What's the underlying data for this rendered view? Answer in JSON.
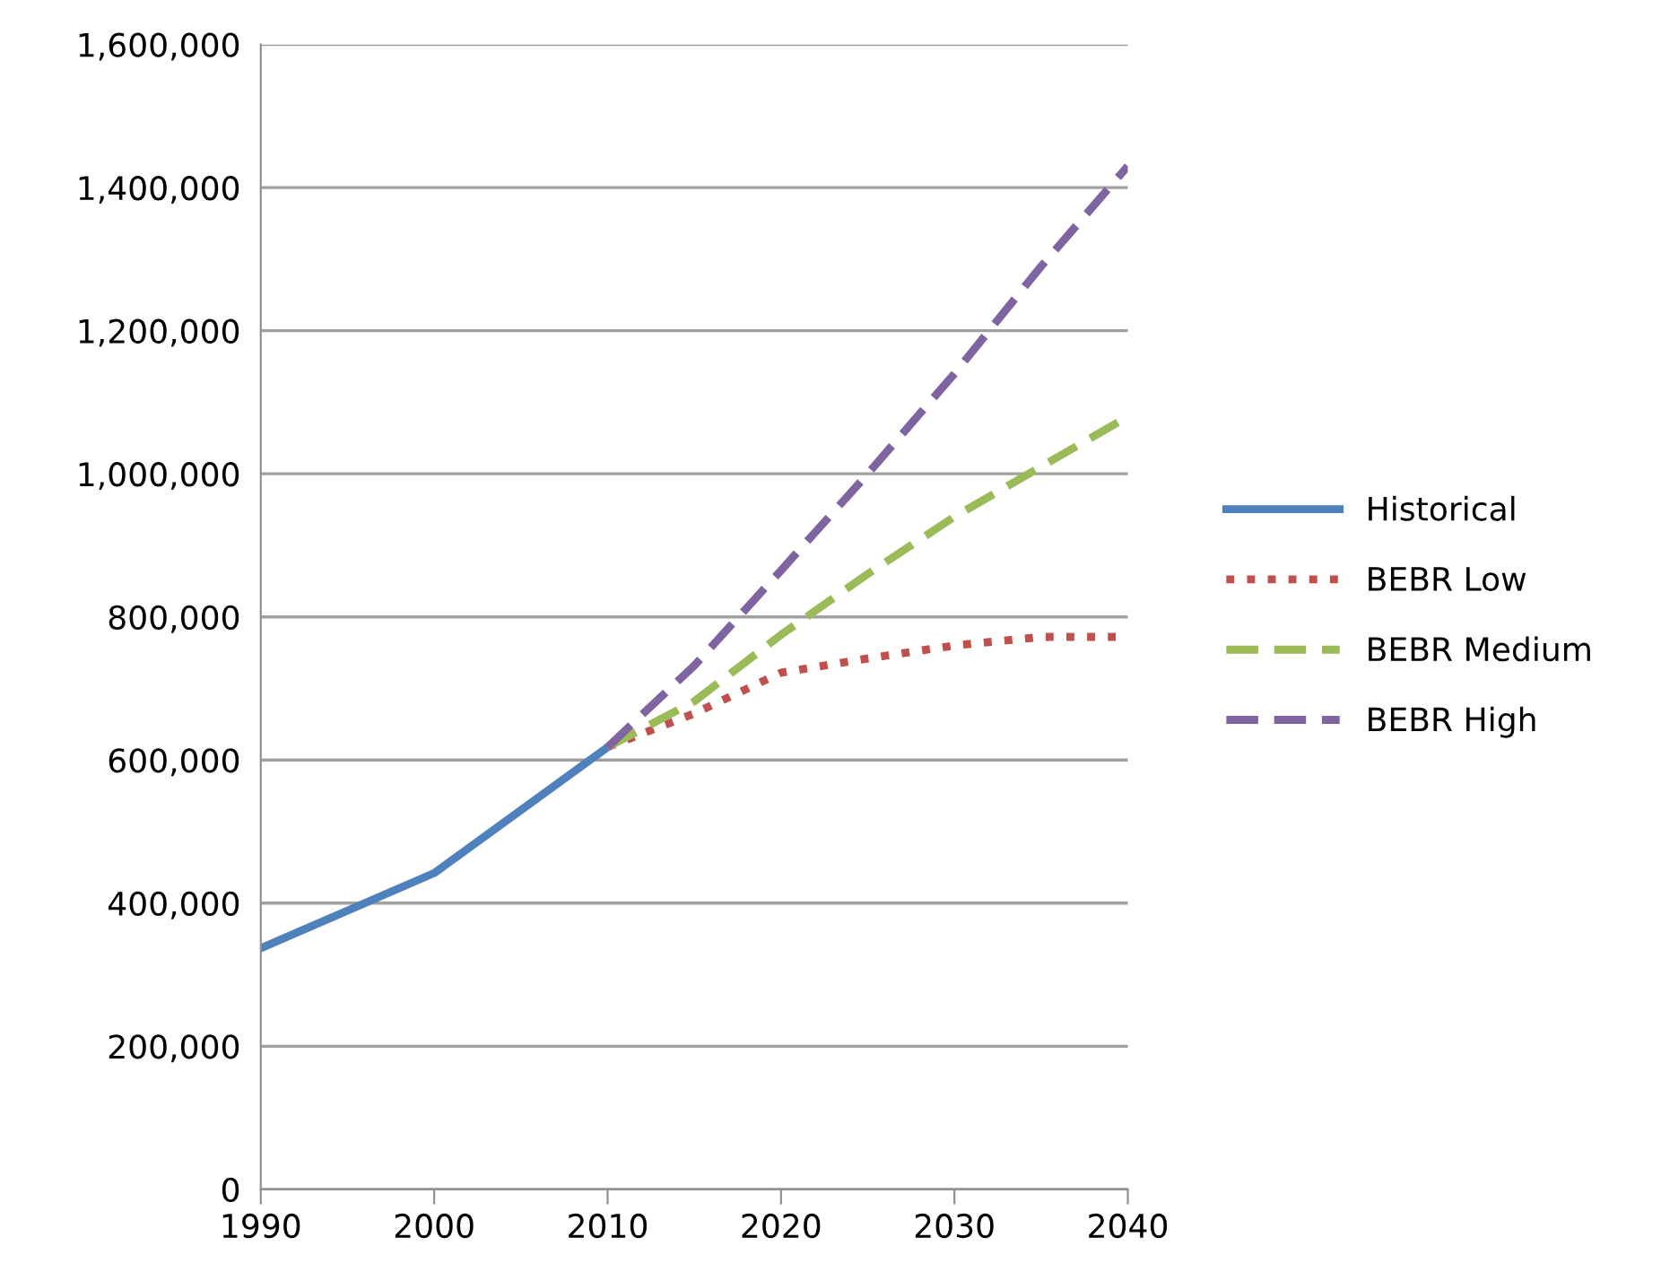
{
  "chart_data": {
    "type": "line",
    "series": [
      {
        "name": "Historical",
        "color": "#4f81bd",
        "line_style": "solid",
        "x": [
          1990,
          2000,
          2010
        ],
        "values": [
          337000,
          442000,
          618000
        ]
      },
      {
        "name": "BEBR Low",
        "color": "#c0504d",
        "line_style": "dotted",
        "x": [
          2010,
          2015,
          2020,
          2025,
          2030,
          2035,
          2040
        ],
        "values": [
          618000,
          665000,
          722000,
          742000,
          760000,
          772000,
          772000
        ]
      },
      {
        "name": "BEBR Medium",
        "color": "#9bbb59",
        "line_style": "dashed",
        "x": [
          2010,
          2015,
          2020,
          2025,
          2030,
          2035,
          2040
        ],
        "values": [
          618000,
          682000,
          775000,
          860000,
          940000,
          1010000,
          1080000
        ]
      },
      {
        "name": "BEBR High",
        "color": "#8064a2",
        "line_style": "dashed",
        "x": [
          2010,
          2015,
          2020,
          2025,
          2030,
          2035,
          2040
        ],
        "values": [
          618000,
          732000,
          865000,
          1000000,
          1140000,
          1290000,
          1430000
        ]
      }
    ],
    "xlim": [
      1990,
      2040
    ],
    "xticks": [
      1990,
      2000,
      2010,
      2020,
      2030,
      2040
    ],
    "ylim": [
      0,
      1600000
    ],
    "yticks": [
      {
        "value": 0,
        "label": "0"
      },
      {
        "value": 200000,
        "label": "200,000"
      },
      {
        "value": 400000,
        "label": "400,000"
      },
      {
        "value": 600000,
        "label": "600,000"
      },
      {
        "value": 800000,
        "label": "800,000"
      },
      {
        "value": 1000000,
        "label": "1,000,000"
      },
      {
        "value": 1200000,
        "label": "1,200,000"
      },
      {
        "value": 1400000,
        "label": "1,400,000"
      },
      {
        "value": 1600000,
        "label": "1,600,000"
      }
    ],
    "grid": "y",
    "legend": "right"
  }
}
